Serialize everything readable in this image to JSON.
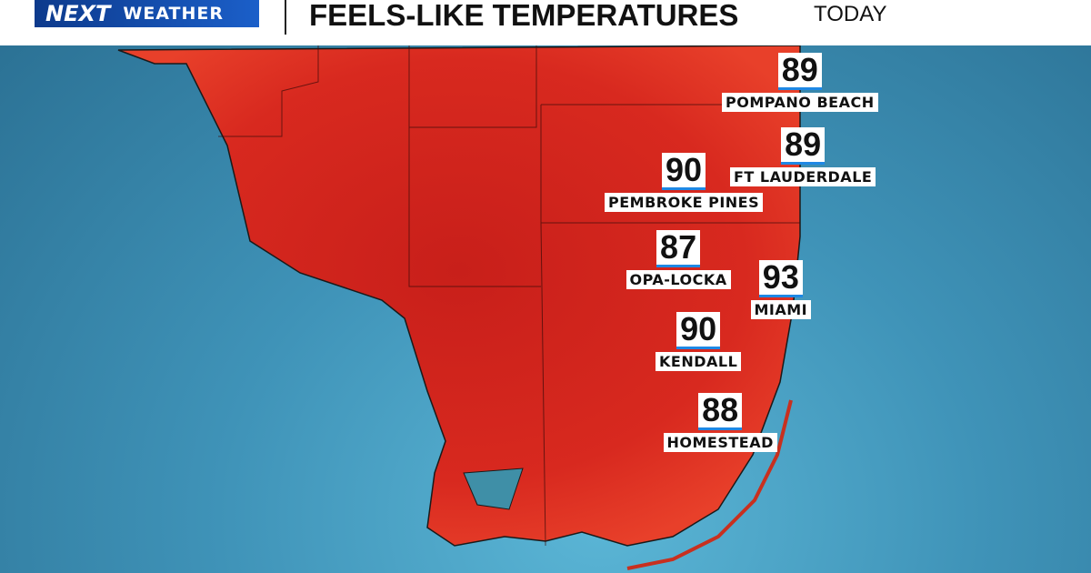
{
  "header": {
    "logo": {
      "brand": "NEXT",
      "product": "WEATHER"
    },
    "title": "FEELS-LIKE TEMPERATURES",
    "period": "TODAY"
  },
  "cities": [
    {
      "name": "POMPANO BEACH",
      "temp": 89
    },
    {
      "name": "FT LAUDERDALE",
      "temp": 89
    },
    {
      "name": "PEMBROKE PINES",
      "temp": 90
    },
    {
      "name": "OPA-LOCKA",
      "temp": 87
    },
    {
      "name": "MIAMI",
      "temp": 93
    },
    {
      "name": "KENDALL",
      "temp": 90
    },
    {
      "name": "HOMESTEAD",
      "temp": 88
    }
  ]
}
